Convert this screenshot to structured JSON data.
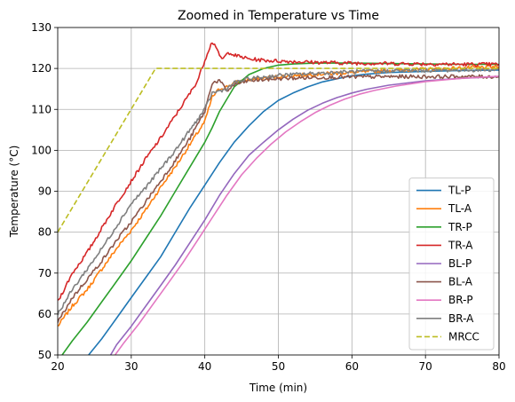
{
  "chart_data": {
    "type": "line",
    "title": "Zoomed in Temperature vs Time",
    "xlabel": "Time (min)",
    "ylabel": "Temperature (°C)",
    "xlim": [
      20,
      80
    ],
    "ylim": [
      50,
      130
    ],
    "xticks": [
      20,
      30,
      40,
      50,
      60,
      70,
      80
    ],
    "yticks": [
      50,
      60,
      70,
      80,
      90,
      100,
      110,
      120,
      130
    ],
    "grid": true,
    "legend_position": "lower right",
    "series": [
      {
        "name": "TL-P",
        "color": "#1f77b4",
        "style": "solid",
        "x": [
          24.2,
          26,
          28,
          30,
          32,
          34,
          36,
          38,
          40,
          42,
          44,
          46,
          48,
          50,
          52,
          54,
          56,
          58,
          60,
          62,
          65,
          70,
          75,
          80
        ],
        "y": [
          50,
          54,
          59,
          64,
          69,
          74,
          80,
          86,
          91.5,
          97,
          102,
          106,
          109.5,
          112.2,
          114,
          115.5,
          116.7,
          117.5,
          118.2,
          118.6,
          119,
          119.3,
          119.5,
          119.6
        ]
      },
      {
        "name": "TL-A",
        "color": "#ff7f0e",
        "style": "solid",
        "x": [
          20,
          22,
          24,
          26,
          28,
          30,
          32,
          34,
          36,
          38,
          40,
          41,
          42,
          43,
          44,
          46,
          50,
          55,
          60,
          65,
          70,
          75,
          80
        ],
        "y": [
          57,
          62,
          66,
          71,
          76,
          80.5,
          85.5,
          91,
          96,
          101.5,
          107,
          113,
          115,
          115.5,
          116.5,
          117.2,
          118,
          118.6,
          119,
          119.5,
          119.8,
          120.1,
          120.4
        ]
      },
      {
        "name": "TR-P",
        "color": "#2ca02c",
        "style": "solid",
        "x": [
          20.6,
          22,
          24,
          26,
          28,
          30,
          32,
          34,
          36,
          38,
          40,
          41,
          42,
          44,
          46,
          48,
          50,
          52,
          55,
          60,
          65,
          70,
          75,
          80
        ],
        "y": [
          50,
          53.5,
          58,
          63,
          68,
          73,
          78.5,
          84,
          90,
          96,
          102,
          105.5,
          109.5,
          115.5,
          118.5,
          120,
          120.8,
          121.1,
          121.3,
          121.3,
          121.2,
          121.1,
          121,
          121
        ]
      },
      {
        "name": "TR-A",
        "color": "#d62728",
        "style": "solid",
        "x": [
          20,
          22,
          24,
          26,
          28,
          30,
          32,
          34,
          36,
          38,
          39,
          40,
          40.5,
          41,
          41.5,
          42,
          42.5,
          43,
          43.5,
          44,
          45,
          46,
          48,
          50,
          55,
          60,
          65,
          70,
          75,
          80
        ],
        "y": [
          63,
          70,
          75,
          81,
          87,
          92.5,
          98,
          103,
          108.5,
          114,
          117,
          122,
          124.5,
          126.5,
          125.5,
          122.8,
          122.4,
          123.5,
          124,
          123.2,
          122.8,
          122.3,
          122,
          121.8,
          121.5,
          121.3,
          121.2,
          121.1,
          121,
          121
        ]
      },
      {
        "name": "BL-P",
        "color": "#9467bd",
        "style": "solid",
        "x": [
          27.2,
          28,
          30,
          32,
          34,
          36,
          38,
          40,
          42,
          44,
          46,
          48,
          50,
          52,
          54,
          56,
          58,
          60,
          62,
          65,
          70,
          75,
          80
        ],
        "y": [
          50,
          52.5,
          57,
          62,
          67,
          72,
          77.5,
          83,
          89,
          94.3,
          98.8,
          102,
          105,
          107.6,
          109.8,
          111.5,
          112.9,
          114,
          114.9,
          115.9,
          117,
          117.6,
          118
        ]
      },
      {
        "name": "BL-A",
        "color": "#8c564b",
        "style": "solid",
        "x": [
          20,
          22,
          24,
          26,
          28,
          30,
          32,
          34,
          36,
          38,
          40,
          41,
          42,
          43,
          44,
          46,
          50,
          55,
          60,
          65,
          70,
          75,
          80
        ],
        "y": [
          58,
          64,
          68.5,
          73,
          78,
          82.5,
          87.5,
          92.5,
          97.5,
          103,
          109.5,
          116.5,
          117,
          114.5,
          116,
          117,
          117.5,
          117.8,
          117.9,
          118,
          118,
          118,
          118
        ]
      },
      {
        "name": "BR-P",
        "color": "#e377c2",
        "style": "solid",
        "x": [
          27.8,
          29,
          31,
          33,
          35,
          37,
          39,
          41,
          43,
          45,
          47,
          49,
          51,
          53,
          55,
          57,
          59,
          61,
          63,
          66,
          70,
          75,
          80
        ],
        "y": [
          50,
          53,
          57.5,
          62.5,
          67.5,
          72.5,
          78,
          83.5,
          89,
          94,
          98,
          101.5,
          104.5,
          107,
          109.2,
          111,
          112.5,
          113.7,
          114.6,
          115.7,
          116.8,
          117.6,
          118.1
        ]
      },
      {
        "name": "BR-A",
        "color": "#7f7f7f",
        "style": "solid",
        "x": [
          20,
          22,
          24,
          26,
          28,
          30,
          32,
          34,
          36,
          38,
          40,
          41,
          42,
          43,
          44,
          46,
          50,
          55,
          60,
          65,
          70,
          75,
          80
        ],
        "y": [
          60,
          66,
          71,
          76,
          81.5,
          87,
          91,
          95.5,
          100,
          105,
          110,
          114,
          114.5,
          115,
          116.5,
          117.5,
          118.3,
          118.8,
          119.2,
          119.4,
          119.5,
          119.6,
          119.7
        ]
      },
      {
        "name": "MRCC",
        "color": "#bcbd22",
        "style": "dashed",
        "x": [
          20,
          33.3,
          80
        ],
        "y": [
          80,
          120,
          120
        ]
      }
    ]
  }
}
